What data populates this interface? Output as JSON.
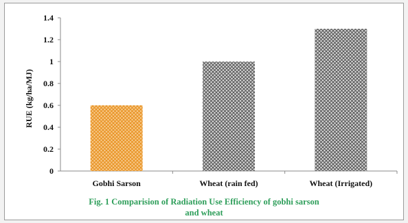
{
  "chart_data": {
    "type": "bar",
    "categories": [
      "Gobhi Sarson",
      "Wheat (rain fed)",
      "Wheat (Irrigated)"
    ],
    "values": [
      0.6,
      1.0,
      1.3
    ],
    "ylabel": "RUE (kg/ha/MJ)",
    "xlabel": "",
    "ylim": [
      0,
      1.4
    ],
    "yticks": [
      "0",
      "0.2",
      "0.4",
      "0.6",
      "0.8",
      "1",
      "1.2",
      "1.4"
    ],
    "grid": false,
    "bar_colors": [
      "#f0a64a",
      "#7a7a7a",
      "#7a7a7a"
    ],
    "caption_line1": "Fig. 1 Comparision of Radiation Use Efficiency of gobhi sarson",
    "caption_line2": "and wheat"
  }
}
